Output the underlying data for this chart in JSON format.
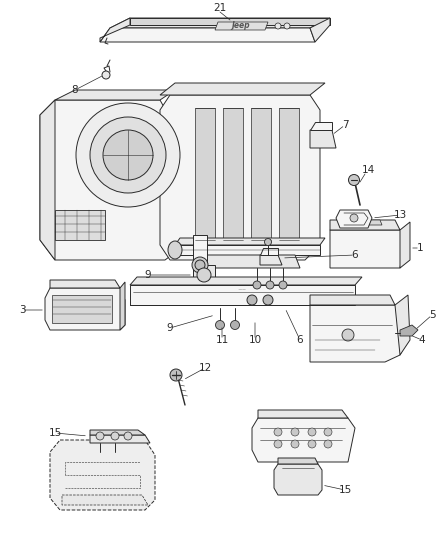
{
  "bg": "#ffffff",
  "lc": "#2a2a2a",
  "lw": 0.7,
  "fig_w": 4.38,
  "fig_h": 5.33,
  "dpi": 100
}
